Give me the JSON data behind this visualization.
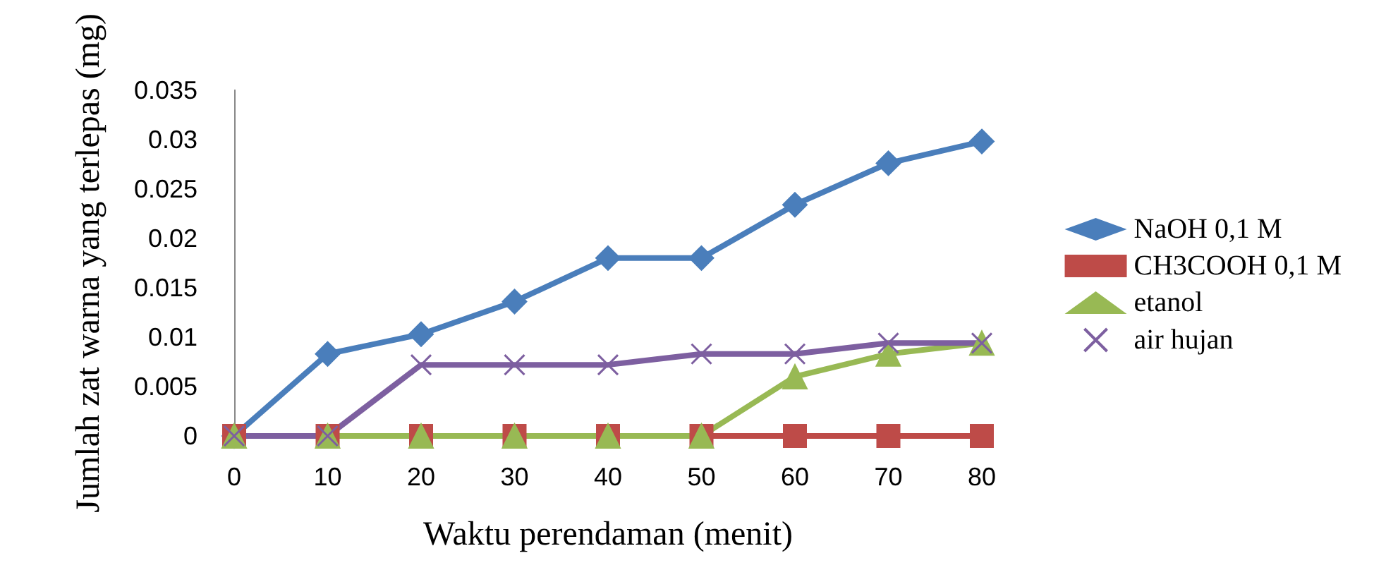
{
  "chart_data": {
    "type": "line",
    "xlabel": "Waktu perendaman (menit)",
    "ylabel": "Jumlah zat warna yang terlepas (mg)",
    "categories": [
      "0",
      "10",
      "20",
      "30",
      "40",
      "50",
      "60",
      "70",
      "80"
    ],
    "ylim": [
      0,
      0.035
    ],
    "yticks": [
      0,
      0.005,
      0.01,
      0.015,
      0.02,
      0.025,
      0.03,
      0.035
    ],
    "grid": false,
    "legend": "right",
    "series": [
      {
        "name": "NaOH 0,1 M",
        "color": "#4a7ebb",
        "marker": "diamond",
        "values": [
          0,
          0.0083,
          0.0103,
          0.0136,
          0.018,
          0.018,
          0.0234,
          0.0276,
          0.0298
        ]
      },
      {
        "name": "CH3COOH 0,1 M",
        "color": "#be4b48",
        "marker": "square",
        "values": [
          0,
          0,
          0,
          0,
          0,
          0,
          0,
          0,
          0
        ]
      },
      {
        "name": "etanol",
        "color": "#98b954",
        "marker": "triangle",
        "values": [
          0,
          0,
          0,
          0,
          0,
          0,
          0.006,
          0.0083,
          0.0094
        ]
      },
      {
        "name": "air hujan",
        "color": "#7d5fa0",
        "marker": "cross",
        "values": [
          0,
          0,
          0.0072,
          0.0072,
          0.0072,
          0.0083,
          0.0083,
          0.0094,
          0.0094
        ]
      }
    ]
  }
}
